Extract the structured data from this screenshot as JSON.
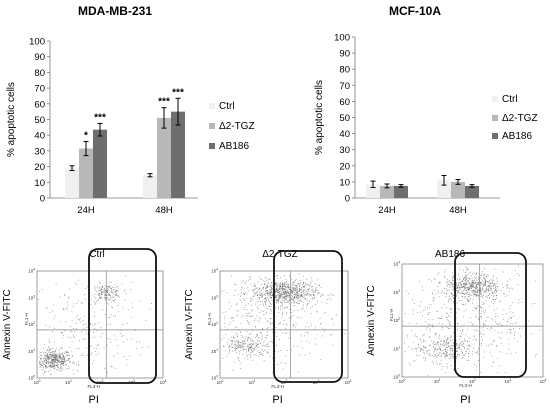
{
  "chart_data": [
    {
      "type": "bar",
      "title": "MDA-MB-231",
      "ylabel": "% apoptotic cells",
      "ylim": [
        0,
        100
      ],
      "yticks": [
        0,
        10,
        20,
        30,
        40,
        50,
        60,
        70,
        80,
        90,
        100
      ],
      "categories": [
        "24H",
        "48H"
      ],
      "legend_position": "right",
      "series": [
        {
          "name": "Ctrl",
          "color": "#f0f0f0",
          "values": [
            19,
            14.5
          ],
          "errors": [
            1.5,
            1
          ],
          "annotations": [
            "",
            ""
          ]
        },
        {
          "name": "Δ2-TGZ",
          "color": "#b8b8b8",
          "values": [
            31.5,
            51
          ],
          "errors": [
            4.5,
            6.5
          ],
          "annotations": [
            "*",
            "***"
          ]
        },
        {
          "name": "AB186",
          "color": "#6e6e6e",
          "values": [
            43.5,
            55
          ],
          "errors": [
            4,
            8.5
          ],
          "annotations": [
            "***",
            "***"
          ]
        }
      ]
    },
    {
      "type": "bar",
      "title": "MCF-10A",
      "ylabel": "% apoptotic cells",
      "ylim": [
        0,
        100
      ],
      "yticks": [
        0,
        10,
        20,
        30,
        40,
        50,
        60,
        70,
        80,
        90,
        100
      ],
      "categories": [
        "24H",
        "48H"
      ],
      "legend_position": "right",
      "series": [
        {
          "name": "Ctrl",
          "color": "#f0f0f0",
          "values": [
            8.5,
            11
          ],
          "errors": [
            2,
            3
          ],
          "annotations": [
            "",
            ""
          ]
        },
        {
          "name": "Δ2-TGZ",
          "color": "#b8b8b8",
          "values": [
            7.5,
            10
          ],
          "errors": [
            1.2,
            1.5
          ],
          "annotations": [
            "",
            ""
          ]
        },
        {
          "name": "AB186",
          "color": "#6e6e6e",
          "values": [
            7.5,
            7.5
          ],
          "errors": [
            0.8,
            0.8
          ],
          "annotations": [
            "",
            ""
          ]
        }
      ]
    },
    {
      "type": "scatter",
      "panels": [
        {
          "title": "Ctrl",
          "ylabel": "Annexin V-FITC",
          "xlabel": "PI",
          "axis_xlabel_small": "FL3-H",
          "axis_ylabel_small": "FL1-H",
          "scale": "log",
          "xticks": [
            "10^0",
            "10^1",
            "10^2",
            "10^3",
            "10^4"
          ],
          "yticks": [
            "10^0",
            "10^1",
            "10^2",
            "10^3",
            "10^4"
          ],
          "gate_x": "10^2.2",
          "gate_y": "10^1.4",
          "highlight": "late apoptotic (PI+ Annexin+)"
        },
        {
          "title": "Δ2-TGZ",
          "ylabel": "Annexin V-FITC",
          "xlabel": "PI",
          "axis_xlabel_small": "FL3-H",
          "axis_ylabel_small": "FL1-H",
          "scale": "log",
          "xticks": [
            "10^0",
            "10^1",
            "10^2",
            "10^3",
            "10^4"
          ],
          "yticks": [
            "10^0",
            "10^1",
            "10^2",
            "10^3",
            "10^4"
          ],
          "gate_x": "10^2.2",
          "gate_y": "10^1.4"
        },
        {
          "title": "AB186",
          "ylabel": "Annexin V-FITC",
          "xlabel": "PI",
          "axis_xlabel_small": "FL3-H",
          "axis_ylabel_small": "FL1-H",
          "scale": "log",
          "xticks": [
            "10^0",
            "10^1",
            "10^2",
            "10^3",
            "10^4"
          ],
          "yticks": [
            "10^0",
            "10^1",
            "10^2",
            "10^3",
            "10^4"
          ],
          "gate_x": "10^2.2",
          "gate_y": "10^1.4"
        }
      ]
    }
  ]
}
